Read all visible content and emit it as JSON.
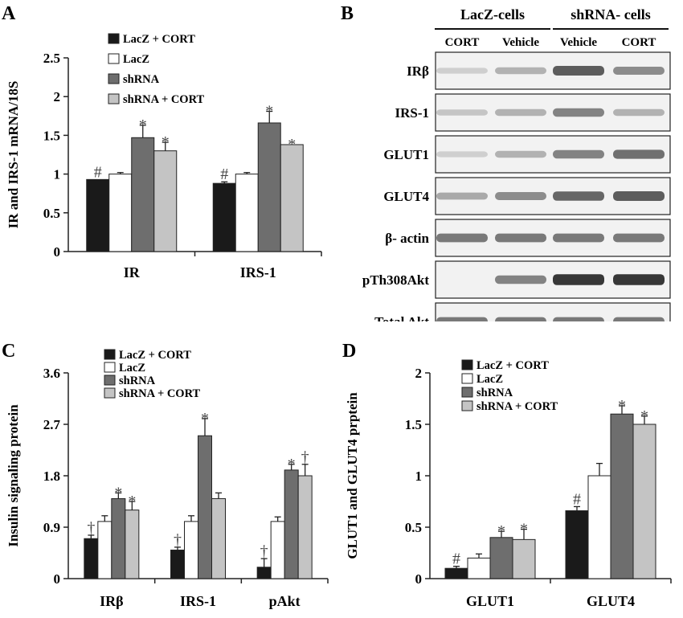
{
  "colors": {
    "s1": "#1a1a1a",
    "s2": "#ffffff",
    "s3": "#6e6e6e",
    "s4": "#c4c4c4",
    "axis": "#222222"
  },
  "chart_data": [
    {
      "panel": "A",
      "type": "bar",
      "ylabel": "IR and IRS-1 mRNA/18S",
      "ylim": [
        0,
        2.5
      ],
      "yticks": [
        "0",
        "0.5",
        "1",
        "1.5",
        "2",
        "2.5"
      ],
      "categories": [
        "IR",
        "IRS-1"
      ],
      "legend_position": "top-left",
      "series": [
        {
          "name": "LacZ + CORT",
          "values": [
            0.93,
            0.88
          ],
          "errors": [
            0.0,
            0.02
          ],
          "markers": [
            "#",
            "#"
          ]
        },
        {
          "name": "LacZ",
          "values": [
            1.0,
            1.0
          ],
          "errors": [
            0.02,
            0.02
          ],
          "markers": [
            "",
            ""
          ]
        },
        {
          "name": "shRNA",
          "values": [
            1.47,
            1.66
          ],
          "errors": [
            0.16,
            0.15
          ],
          "markers": [
            "*",
            "*"
          ]
        },
        {
          "name": "shRNA + CORT",
          "values": [
            1.3,
            1.38
          ],
          "errors": [
            0.11,
            0.0
          ],
          "markers": [
            "*",
            "*"
          ]
        }
      ]
    },
    {
      "panel": "C",
      "type": "bar",
      "ylabel": "Insulin signaling protein",
      "ylim": [
        0,
        3.6
      ],
      "yticks": [
        "0",
        "0.9",
        "1.8",
        "2.7",
        "3.6"
      ],
      "categories": [
        "IRβ",
        "IRS-1",
        "pAkt"
      ],
      "legend_position": "top-left",
      "series": [
        {
          "name": "LacZ + CORT",
          "values": [
            0.7,
            0.5,
            0.2
          ],
          "errors": [
            0.06,
            0.05,
            0.15
          ],
          "markers": [
            "†",
            "†",
            "†"
          ]
        },
        {
          "name": "LacZ",
          "values": [
            1.0,
            1.0,
            1.0
          ],
          "errors": [
            0.1,
            0.1,
            0.08
          ],
          "markers": [
            "",
            "",
            ""
          ]
        },
        {
          "name": "shRNA",
          "values": [
            1.4,
            2.5,
            1.9
          ],
          "errors": [
            0.1,
            0.3,
            0.1
          ],
          "markers": [
            "*",
            "*",
            "*"
          ]
        },
        {
          "name": "shRNA + CORT",
          "values": [
            1.2,
            1.4,
            1.8
          ],
          "errors": [
            0.15,
            0.1,
            0.2
          ],
          "markers": [
            "*",
            "",
            "†"
          ]
        }
      ]
    },
    {
      "panel": "D",
      "type": "bar",
      "ylabel": "GLUT1 and GLUT4 prptein",
      "ylim": [
        0,
        2
      ],
      "yticks": [
        "0",
        "0.5",
        "1",
        "1.5",
        "2"
      ],
      "categories": [
        "GLUT1",
        "GLUT4"
      ],
      "legend_position": "top-left",
      "series": [
        {
          "name": "LacZ + CORT",
          "values": [
            0.1,
            0.66
          ],
          "errors": [
            0.02,
            0.04
          ],
          "markers": [
            "#",
            "#"
          ]
        },
        {
          "name": "LacZ",
          "values": [
            0.2,
            1.0
          ],
          "errors": [
            0.04,
            0.12
          ],
          "markers": [
            "",
            ""
          ]
        },
        {
          "name": "shRNA",
          "values": [
            0.4,
            1.6
          ],
          "errors": [
            0.06,
            0.08
          ],
          "markers": [
            "*",
            "*"
          ]
        },
        {
          "name": "shRNA + CORT",
          "values": [
            0.38,
            1.5
          ],
          "errors": [
            0.1,
            0.08
          ],
          "markers": [
            "*",
            "*"
          ]
        }
      ]
    }
  ],
  "panel_labels": {
    "a": "A",
    "b": "B",
    "c": "C",
    "d": "D"
  },
  "blot": {
    "group_headers": [
      "LacZ-cells",
      "shRNA- cells"
    ],
    "lanes": [
      "CORT",
      "Vehicle",
      "Vehicle",
      "CORT"
    ],
    "rows": [
      {
        "label": "IRβ",
        "intensity": [
          0.15,
          0.3,
          0.75,
          0.5
        ]
      },
      {
        "label": "IRS-1",
        "intensity": [
          0.2,
          0.3,
          0.55,
          0.3
        ]
      },
      {
        "label": "GLUT1",
        "intensity": [
          0.15,
          0.3,
          0.55,
          0.65
        ]
      },
      {
        "label": "GLUT4",
        "intensity": [
          0.35,
          0.5,
          0.7,
          0.75
        ]
      },
      {
        "label": "β- actin",
        "intensity": [
          0.6,
          0.6,
          0.6,
          0.6
        ]
      },
      {
        "label": "pTh308Akt",
        "intensity": [
          0.0,
          0.55,
          0.95,
          0.95
        ]
      },
      {
        "label": "Total Akt",
        "intensity": [
          0.6,
          0.6,
          0.6,
          0.6
        ]
      }
    ]
  }
}
